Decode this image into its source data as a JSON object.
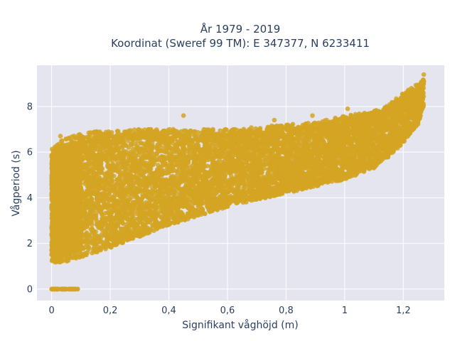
{
  "chart_data": {
    "type": "scatter",
    "title_lines": [
      "År 1979 - 2019",
      "Koordinat (Sweref 99 TM): E 347377, N 6233411"
    ],
    "xlabel": "Signifikant våghöjd (m)",
    "ylabel": "Vågperiod (s)",
    "xlim": [
      -0.05,
      1.34
    ],
    "ylim": [
      -0.5,
      9.8
    ],
    "x_ticks": [
      0,
      0.2,
      0.4,
      0.6,
      0.8,
      1.0,
      1.2
    ],
    "x_tick_labels": [
      "0",
      "0,2",
      "0,4",
      "0,6",
      "0,8",
      "1",
      "1,2"
    ],
    "y_ticks": [
      0,
      2,
      4,
      6,
      8
    ],
    "y_tick_labels": [
      "0",
      "2",
      "4",
      "6",
      "8"
    ],
    "grid": true,
    "colors": {
      "marker": "#d4a422",
      "plot_bg": "#e5e5f0",
      "grid": "#ffffff",
      "text": "#2a3f5f"
    },
    "envelope": {
      "x": [
        0.0,
        0.02,
        0.05,
        0.1,
        0.15,
        0.2,
        0.3,
        0.4,
        0.5,
        0.6,
        0.7,
        0.8,
        0.9,
        1.0,
        1.1,
        1.15,
        1.2,
        1.25,
        1.27
      ],
      "y_low": [
        1.1,
        1.1,
        1.2,
        1.4,
        1.6,
        1.8,
        2.3,
        2.8,
        3.2,
        3.6,
        3.9,
        4.2,
        4.5,
        4.8,
        5.3,
        5.8,
        6.4,
        7.2,
        8.0
      ],
      "y_high": [
        6.2,
        6.4,
        6.6,
        6.8,
        6.9,
        6.9,
        7.0,
        7.0,
        7.0,
        7.0,
        7.1,
        7.2,
        7.3,
        7.6,
        7.8,
        8.1,
        8.6,
        9.0,
        9.3
      ]
    },
    "zero_period_band": {
      "x_min": 0.0,
      "x_max": 0.09,
      "y": 0
    },
    "outliers": [
      {
        "x": 0.45,
        "y": 7.6
      },
      {
        "x": 0.89,
        "y": 7.6
      },
      {
        "x": 1.01,
        "y": 7.9
      },
      {
        "x": 0.95,
        "y": 7.3
      },
      {
        "x": 0.76,
        "y": 7.4
      },
      {
        "x": 1.27,
        "y": 9.4
      },
      {
        "x": 0.03,
        "y": 6.7
      }
    ]
  }
}
